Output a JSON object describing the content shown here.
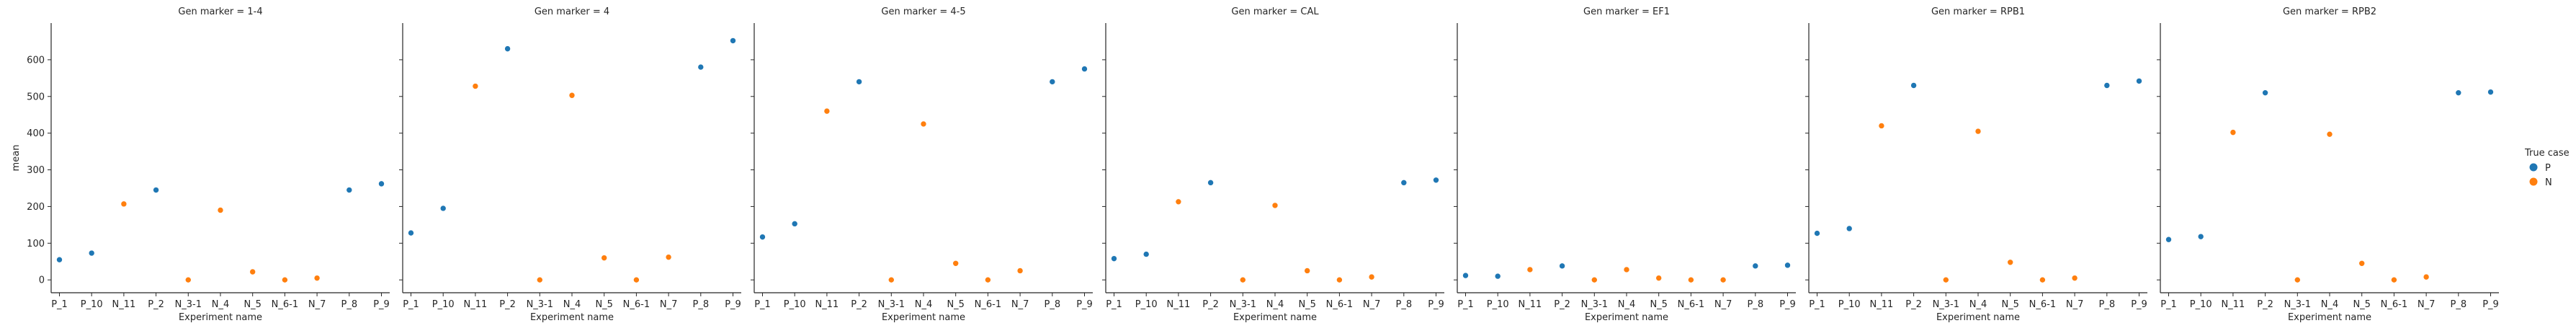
{
  "chart_data": {
    "type": "scatter",
    "facet_variable": "Gen marker",
    "ylabel": "mean",
    "xlabel": "Experiment name",
    "ylim": [
      -35,
      700
    ],
    "yticks": [
      0,
      100,
      200,
      300,
      400,
      500,
      600
    ],
    "categories": [
      "P_1",
      "P_10",
      "N_11",
      "P_2",
      "N_3-1",
      "N_4",
      "N_5",
      "N_6-1",
      "N_7",
      "P_8",
      "P_9"
    ],
    "case_by_category": [
      "P",
      "P",
      "N",
      "P",
      "N",
      "N",
      "N",
      "N",
      "N",
      "P",
      "P"
    ],
    "legend": {
      "title": "True case",
      "position": "right",
      "entries": [
        {
          "label": "P",
          "color": "#1f77b4"
        },
        {
          "label": "N",
          "color": "#ff7f0e"
        }
      ]
    },
    "panels": [
      {
        "title": "Gen marker = 1-4",
        "values": [
          55,
          73,
          207,
          245,
          0,
          190,
          22,
          0,
          5,
          245,
          262
        ]
      },
      {
        "title": "Gen marker = 4",
        "values": [
          128,
          195,
          528,
          630,
          0,
          503,
          60,
          0,
          62,
          580,
          652
        ]
      },
      {
        "title": "Gen marker = 4-5",
        "values": [
          117,
          153,
          460,
          540,
          0,
          425,
          45,
          0,
          25,
          540,
          575
        ]
      },
      {
        "title": "Gen marker = CAL",
        "values": [
          58,
          70,
          213,
          265,
          0,
          203,
          25,
          0,
          8,
          265,
          272
        ]
      },
      {
        "title": "Gen marker = EF1",
        "values": [
          12,
          10,
          28,
          38,
          0,
          28,
          5,
          0,
          0,
          38,
          40
        ]
      },
      {
        "title": "Gen marker = RPB1",
        "values": [
          127,
          140,
          420,
          530,
          0,
          405,
          48,
          0,
          5,
          530,
          542
        ]
      },
      {
        "title": "Gen marker = RPB2",
        "values": [
          110,
          118,
          402,
          510,
          0,
          397,
          45,
          0,
          8,
          510,
          512
        ]
      }
    ]
  }
}
